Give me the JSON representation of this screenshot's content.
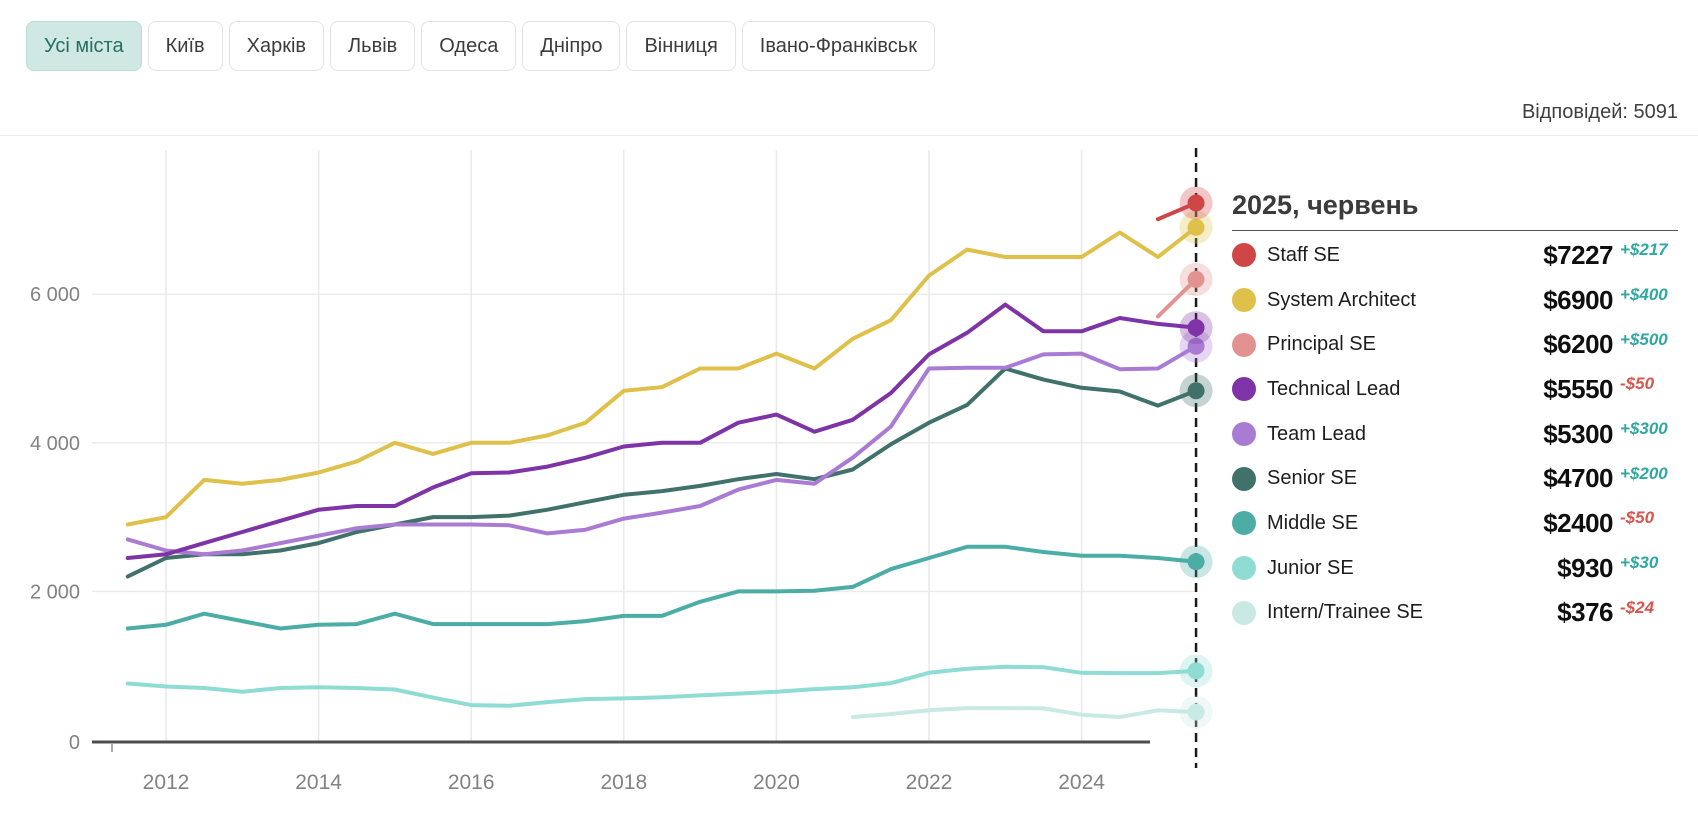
{
  "header": {
    "responses": "Відповідей: 5091"
  },
  "tabs": [
    {
      "label": "Усі міста",
      "active": true
    },
    {
      "label": "Київ",
      "active": false
    },
    {
      "label": "Харків",
      "active": false
    },
    {
      "label": "Львів",
      "active": false
    },
    {
      "label": "Одеса",
      "active": false
    },
    {
      "label": "Дніпро",
      "active": false
    },
    {
      "label": "Вінниця",
      "active": false
    },
    {
      "label": "Івано-Франківськ",
      "active": false
    }
  ],
  "legend": {
    "title": "2025, червень",
    "positive_color": "#2fa8a1",
    "negative_color": "#d9544d",
    "entries": [
      {
        "label": "Staff SE",
        "value": "$7227",
        "diff": "+$217",
        "trend": "up",
        "color": "#cf4647"
      },
      {
        "label": "System Architect",
        "value": "$6900",
        "diff": "+$400",
        "trend": "up",
        "color": "#dfc04a"
      },
      {
        "label": "Principal SE",
        "value": "$6200",
        "diff": "+$500",
        "trend": "up",
        "color": "#e29290"
      },
      {
        "label": "Technical Lead",
        "value": "$5550",
        "diff": "-$50",
        "trend": "down",
        "color": "#7e33a6"
      },
      {
        "label": "Team Lead",
        "value": "$5300",
        "diff": "+$300",
        "trend": "up",
        "color": "#a97bd3"
      },
      {
        "label": "Senior SE",
        "value": "$4700",
        "diff": "+$200",
        "trend": "up",
        "color": "#40716a"
      },
      {
        "label": "Middle SE",
        "value": "$2400",
        "diff": "-$50",
        "trend": "down",
        "color": "#4bada6"
      },
      {
        "label": "Junior SE",
        "value": "$930",
        "diff": "+$30",
        "trend": "up",
        "color": "#8edcd3"
      },
      {
        "label": "Intern/Trainee SE",
        "value": "$376",
        "diff": "-$24",
        "trend": "down",
        "color": "#c9e9e4"
      }
    ]
  },
  "chart_data": {
    "type": "line",
    "title": "",
    "xlabel": "",
    "ylabel": "",
    "ylim": [
      0,
      7600
    ],
    "xlim": [
      2011.5,
      2025.5
    ],
    "grid": true,
    "legend_position": "right",
    "marker_x": 2025.5,
    "marker_label": "2025, червень",
    "x": [
      2011.5,
      2012,
      2012.5,
      2013,
      2013.5,
      2014,
      2014.5,
      2015,
      2015.5,
      2016,
      2016.5,
      2017,
      2017.5,
      2018,
      2018.5,
      2019,
      2019.5,
      2020,
      2020.5,
      2021,
      2021.5,
      2022,
      2022.5,
      2023,
      2023.5,
      2024,
      2024.5,
      2025,
      2025.5
    ],
    "xticks": [
      {
        "value": 2012,
        "label": "2012"
      },
      {
        "value": 2014,
        "label": "2014"
      },
      {
        "value": 2016,
        "label": "2016"
      },
      {
        "value": 2018,
        "label": "2018"
      },
      {
        "value": 2020,
        "label": "2020"
      },
      {
        "value": 2022,
        "label": "2022"
      },
      {
        "value": 2024,
        "label": "2024"
      }
    ],
    "yticks": [
      {
        "value": 0,
        "label": "0"
      },
      {
        "value": 2000,
        "label": "2 000"
      },
      {
        "value": 4000,
        "label": "4 000"
      },
      {
        "value": 6000,
        "label": "6 000"
      }
    ],
    "series": [
      {
        "name": "Staff SE",
        "color": "#cf4647",
        "values": [
          null,
          null,
          null,
          null,
          null,
          null,
          null,
          null,
          null,
          null,
          null,
          null,
          null,
          null,
          null,
          null,
          null,
          null,
          null,
          null,
          null,
          null,
          null,
          null,
          null,
          null,
          null,
          7010,
          7227
        ]
      },
      {
        "name": "System Architect",
        "color": "#dfc04a",
        "values": [
          2900,
          3000,
          3500,
          3450,
          3500,
          3600,
          3750,
          4000,
          3850,
          4000,
          4000,
          4100,
          4270,
          4700,
          4750,
          5000,
          5000,
          5200,
          5000,
          5400,
          5650,
          6250,
          6600,
          6500,
          6500,
          6500,
          6830,
          6500,
          6900
        ]
      },
      {
        "name": "Principal SE",
        "color": "#e29290",
        "values": [
          null,
          null,
          null,
          null,
          null,
          null,
          null,
          null,
          null,
          null,
          null,
          null,
          null,
          null,
          null,
          null,
          null,
          null,
          null,
          null,
          null,
          null,
          null,
          null,
          null,
          null,
          null,
          5700,
          6200
        ]
      },
      {
        "name": "Technical Lead",
        "color": "#7e33a6",
        "values": [
          2450,
          2500,
          2650,
          2800,
          2950,
          3100,
          3150,
          3150,
          3400,
          3590,
          3600,
          3680,
          3800,
          3950,
          4000,
          4000,
          4270,
          4380,
          4150,
          4310,
          4670,
          5190,
          5480,
          5860,
          5500,
          5500,
          5680,
          5600,
          5550
        ]
      },
      {
        "name": "Team Lead",
        "color": "#a97bd3",
        "values": [
          2700,
          2550,
          2500,
          2550,
          2650,
          2750,
          2850,
          2900,
          2900,
          2900,
          2890,
          2780,
          2830,
          2980,
          3060,
          3150,
          3370,
          3500,
          3450,
          3800,
          4220,
          5000,
          5010,
          5010,
          5190,
          5200,
          4990,
          5000,
          5300
        ]
      },
      {
        "name": "Senior SE",
        "color": "#40716a",
        "values": [
          2200,
          2450,
          2500,
          2500,
          2550,
          2650,
          2800,
          2900,
          3000,
          3000,
          3020,
          3100,
          3200,
          3300,
          3350,
          3420,
          3510,
          3580,
          3510,
          3640,
          3980,
          4270,
          4510,
          5000,
          4850,
          4740,
          4690,
          4500,
          4700
        ]
      },
      {
        "name": "Middle SE",
        "color": "#4bada6",
        "values": [
          1500,
          1550,
          1700,
          1600,
          1500,
          1550,
          1560,
          1700,
          1560,
          1560,
          1560,
          1560,
          1600,
          1670,
          1670,
          1860,
          2000,
          2000,
          2010,
          2060,
          2300,
          2450,
          2600,
          2600,
          2530,
          2480,
          2480,
          2450,
          2400
        ]
      },
      {
        "name": "Junior SE",
        "color": "#8edcd3",
        "values": [
          760,
          720,
          700,
          650,
          700,
          710,
          700,
          680,
          570,
          470,
          460,
          510,
          550,
          560,
          575,
          600,
          625,
          650,
          685,
          710,
          765,
          905,
          960,
          985,
          980,
          905,
          900,
          900,
          930
        ]
      },
      {
        "name": "Intern/Trainee SE",
        "color": "#c9e9e4",
        "values": [
          null,
          null,
          null,
          null,
          null,
          null,
          null,
          null,
          null,
          null,
          null,
          null,
          null,
          null,
          null,
          null,
          null,
          null,
          null,
          310,
          350,
          400,
          430,
          430,
          425,
          340,
          310,
          400,
          376
        ]
      }
    ]
  }
}
